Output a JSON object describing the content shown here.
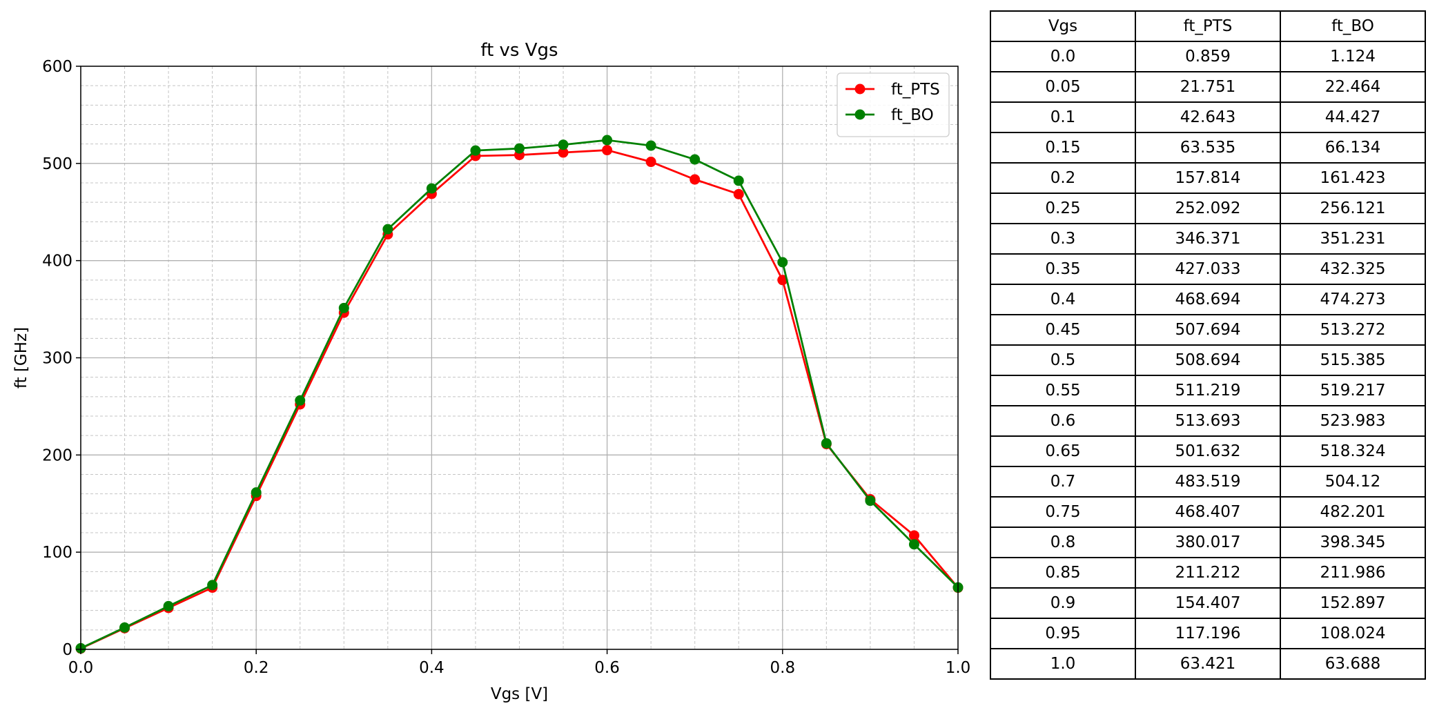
{
  "chart_data": {
    "type": "line",
    "title": "ft vs Vgs",
    "xlabel": "Vgs [V]",
    "ylabel": "ft [GHz]",
    "xlim": [
      0.0,
      1.0
    ],
    "ylim": [
      0,
      600
    ],
    "x_ticks": [
      "0.0",
      "0.2",
      "0.4",
      "0.6",
      "0.8",
      "1.0"
    ],
    "y_ticks": [
      "0",
      "100",
      "200",
      "300",
      "400",
      "500",
      "600"
    ],
    "grid": "major and minor",
    "legend_position": "upper right",
    "x": [
      0.0,
      0.05,
      0.1,
      0.15,
      0.2,
      0.25,
      0.3,
      0.35,
      0.4,
      0.45,
      0.5,
      0.55,
      0.6,
      0.65,
      0.7,
      0.75,
      0.8,
      0.85,
      0.9,
      0.95,
      1.0
    ],
    "series": [
      {
        "name": "ft_PTS",
        "color": "#ff0000",
        "marker": "circle",
        "values": [
          0.859,
          21.751,
          42.643,
          63.535,
          157.814,
          252.092,
          346.371,
          427.033,
          468.694,
          507.694,
          508.694,
          511.219,
          513.693,
          501.632,
          483.519,
          468.407,
          380.017,
          211.212,
          154.407,
          117.196,
          63.421
        ]
      },
      {
        "name": "ft_BO",
        "color": "#008000",
        "marker": "circle",
        "values": [
          1.124,
          22.464,
          44.427,
          66.134,
          161.423,
          256.121,
          351.231,
          432.325,
          474.273,
          513.272,
          515.385,
          519.217,
          523.983,
          518.324,
          504.12,
          482.201,
          398.345,
          211.986,
          152.897,
          108.024,
          63.688
        ]
      }
    ]
  },
  "table": {
    "headers": [
      "Vgs",
      "ft_PTS",
      "ft_BO"
    ],
    "rows": [
      [
        "0.0",
        "0.859",
        "1.124"
      ],
      [
        "0.05",
        "21.751",
        "22.464"
      ],
      [
        "0.1",
        "42.643",
        "44.427"
      ],
      [
        "0.15",
        "63.535",
        "66.134"
      ],
      [
        "0.2",
        "157.814",
        "161.423"
      ],
      [
        "0.25",
        "252.092",
        "256.121"
      ],
      [
        "0.3",
        "346.371",
        "351.231"
      ],
      [
        "0.35",
        "427.033",
        "432.325"
      ],
      [
        "0.4",
        "468.694",
        "474.273"
      ],
      [
        "0.45",
        "507.694",
        "513.272"
      ],
      [
        "0.5",
        "508.694",
        "515.385"
      ],
      [
        "0.55",
        "511.219",
        "519.217"
      ],
      [
        "0.6",
        "513.693",
        "523.983"
      ],
      [
        "0.65",
        "501.632",
        "518.324"
      ],
      [
        "0.7",
        "483.519",
        "504.12"
      ],
      [
        "0.75",
        "468.407",
        "482.201"
      ],
      [
        "0.8",
        "380.017",
        "398.345"
      ],
      [
        "0.85",
        "211.212",
        "211.986"
      ],
      [
        "0.9",
        "154.407",
        "152.897"
      ],
      [
        "0.95",
        "117.196",
        "108.024"
      ],
      [
        "1.0",
        "63.421",
        "63.688"
      ]
    ]
  }
}
